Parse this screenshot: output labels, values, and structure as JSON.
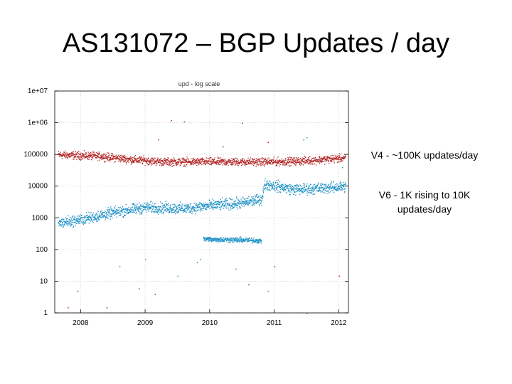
{
  "slide": {
    "title": "AS131072 – BGP Updates / day",
    "annotations": {
      "v4": "V4 - ~100K updates/day",
      "v6": "V6 - 1K rising to 10K updates/day"
    }
  },
  "chart_data": {
    "type": "scatter",
    "title": "upd - log scale",
    "xlabel": "",
    "ylabel": "",
    "yscale": "log",
    "xlim": [
      2007.6,
      2012.15
    ],
    "ylim": [
      1,
      10000000
    ],
    "y_ticks": [
      {
        "value": 1,
        "label": "1"
      },
      {
        "value": 10,
        "label": "10"
      },
      {
        "value": 100,
        "label": "100"
      },
      {
        "value": 1000,
        "label": "1000"
      },
      {
        "value": 10000,
        "label": "10000"
      },
      {
        "value": 100000,
        "label": "100000"
      },
      {
        "value": 1000000,
        "label": "1e+06"
      },
      {
        "value": 10000000,
        "label": "1e+07"
      }
    ],
    "x_ticks": [
      {
        "value": 2008,
        "label": "2008"
      },
      {
        "value": 2009,
        "label": "2009"
      },
      {
        "value": 2010,
        "label": "2010"
      },
      {
        "value": 2011,
        "label": "2011"
      },
      {
        "value": 2012,
        "label": "2012"
      }
    ],
    "grid": true,
    "legend": "none",
    "colors": {
      "v4": "#b22222",
      "v6": "#1a8fc4",
      "grid": "#d0d0d0",
      "frame": "#000000"
    },
    "series": [
      {
        "key": "v4",
        "color": "#b22222",
        "trend": [
          [
            2007.65,
            100000
          ],
          [
            2008.3,
            90000
          ],
          [
            2008.8,
            70000
          ],
          [
            2009.3,
            60000
          ],
          [
            2010.0,
            60000
          ],
          [
            2010.5,
            60000
          ],
          [
            2011.0,
            60000
          ],
          [
            2011.5,
            65000
          ],
          [
            2012.1,
            80000
          ]
        ],
        "spread_decades": 0.18,
        "daily_values_sample": [
          100000,
          95000,
          80000,
          70000,
          65000,
          60000,
          60000,
          62000,
          58000,
          60000,
          65000,
          70000,
          80000
        ]
      },
      {
        "key": "v6",
        "color": "#1a8fc4",
        "trend": [
          [
            2007.65,
            700
          ],
          [
            2008.0,
            900
          ],
          [
            2008.5,
            1500
          ],
          [
            2009.0,
            2200
          ],
          [
            2009.6,
            2000
          ],
          [
            2010.0,
            2500
          ],
          [
            2010.5,
            3000
          ],
          [
            2010.8,
            4000
          ],
          [
            2010.85,
            12000
          ],
          [
            2011.3,
            8000
          ],
          [
            2011.8,
            9000
          ],
          [
            2012.1,
            10000
          ]
        ],
        "spread_decades": 0.25,
        "daily_values_sample": [
          700,
          900,
          1500,
          2200,
          2000,
          2500,
          3000,
          4000,
          12000,
          8000,
          9000,
          10000
        ]
      },
      {
        "key": "v6-low",
        "color": "#1a8fc4",
        "trend": [
          [
            2009.9,
            220
          ],
          [
            2010.3,
            210
          ],
          [
            2010.7,
            200
          ],
          [
            2010.8,
            190
          ]
        ],
        "spread_decades": 0.12,
        "daily_values_sample": [
          220,
          210,
          200,
          190
        ]
      }
    ],
    "outliers": [
      {
        "x": 2007.8,
        "y": 1.5,
        "series": "v4"
      },
      {
        "x": 2007.95,
        "y": 5,
        "series": "v4"
      },
      {
        "x": 2008.4,
        "y": 1.5,
        "series": "v4"
      },
      {
        "x": 2008.9,
        "y": 6,
        "series": "v4"
      },
      {
        "x": 2009.15,
        "y": 4,
        "series": "v4"
      },
      {
        "x": 2009.2,
        "y": 300000,
        "series": "v4"
      },
      {
        "x": 2009.4,
        "y": 1200000,
        "series": "v4"
      },
      {
        "x": 2009.6,
        "y": 1100000,
        "series": "v4"
      },
      {
        "x": 2010.2,
        "y": 180000,
        "series": "v4"
      },
      {
        "x": 2010.5,
        "y": 1000000,
        "series": "v4"
      },
      {
        "x": 2010.6,
        "y": 8,
        "series": "v4"
      },
      {
        "x": 2010.9,
        "y": 250000,
        "series": "v4"
      },
      {
        "x": 2011.0,
        "y": 30,
        "series": "v4"
      },
      {
        "x": 2011.5,
        "y": 1,
        "series": "v4"
      },
      {
        "x": 2012.0,
        "y": 15,
        "series": "v4"
      },
      {
        "x": 2011.45,
        "y": 300000,
        "series": "v6"
      },
      {
        "x": 2011.5,
        "y": 350000,
        "series": "v6"
      },
      {
        "x": 2011.7,
        "y": 70000,
        "series": "v6"
      },
      {
        "x": 2012.05,
        "y": 40000,
        "series": "v6"
      },
      {
        "x": 2008.6,
        "y": 30,
        "series": "v6"
      },
      {
        "x": 2009.0,
        "y": 50,
        "series": "v6"
      },
      {
        "x": 2009.5,
        "y": 15,
        "series": "v6"
      },
      {
        "x": 2009.8,
        "y": 40,
        "series": "v6"
      },
      {
        "x": 2010.4,
        "y": 25,
        "series": "v6"
      },
      {
        "x": 2010.9,
        "y": 5,
        "series": "v6"
      },
      {
        "x": 2009.85,
        "y": 50,
        "series": "v6"
      }
    ]
  }
}
